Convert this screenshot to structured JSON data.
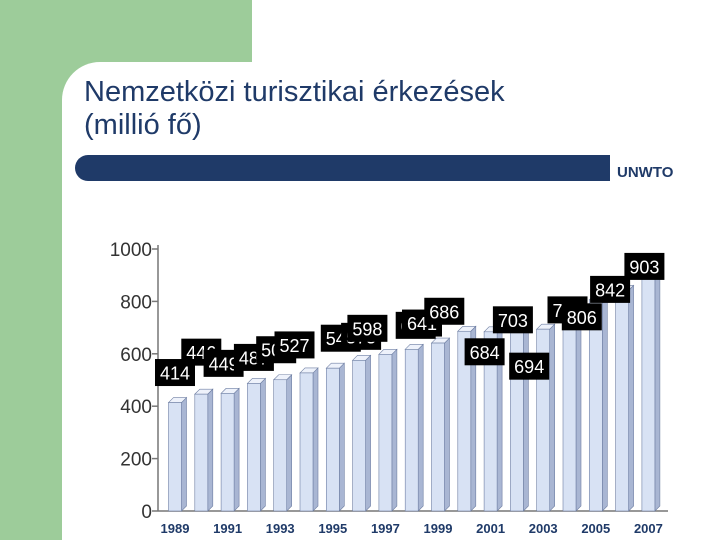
{
  "slide": {
    "title_line1": "Nemzetközi turisztikai érkezések",
    "title_line2": "(millió fő)",
    "source": "UNWTO",
    "accent_color": "#1f3a68",
    "panel_color": "#9dcc9a"
  },
  "chart_data": {
    "type": "bar",
    "title": "",
    "xlabel": "",
    "ylabel": "",
    "ylim": [
      0,
      1000
    ],
    "yticks": [
      0,
      200,
      400,
      600,
      800,
      1000
    ],
    "ytick_labels": [
      "0",
      "200",
      "400",
      "600",
      "800",
      "1000"
    ],
    "categories": [
      "1989",
      "1990",
      "1991",
      "1992",
      "1993",
      "1994",
      "1995",
      "1996",
      "1997",
      "1998",
      "1999",
      "2000",
      "2001",
      "2002",
      "2003",
      "2004",
      "2005",
      "2006",
      "2007"
    ],
    "xtick_labels": [
      "1989",
      "1991",
      "1993",
      "1995",
      "1997",
      "1999",
      "2001",
      "2003",
      "2005",
      "2007"
    ],
    "values": [
      414,
      446,
      449,
      487,
      501,
      527,
      545,
      575,
      598,
      617,
      641,
      686,
      684,
      703,
      694,
      760,
      806,
      842,
      903
    ],
    "grid": false,
    "bar_color": "#d8e2f4"
  }
}
